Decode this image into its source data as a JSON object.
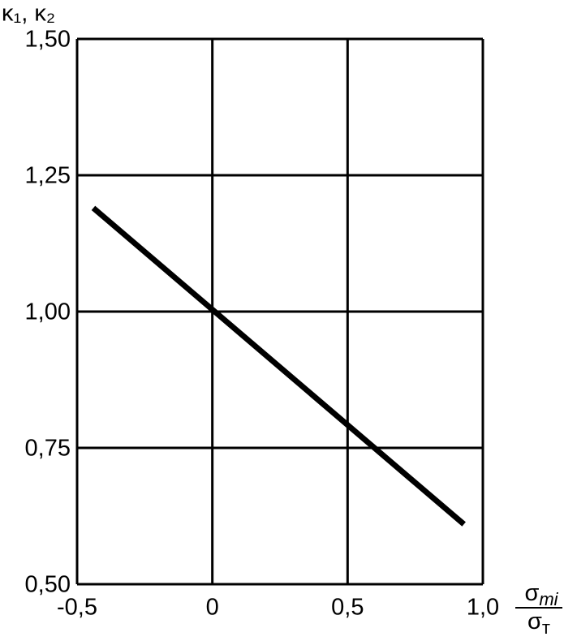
{
  "chart_data": {
    "type": "line",
    "y_label": "κ₁, κ₂",
    "x_label": {
      "numerator": [
        "σ",
        "mi"
      ],
      "denominator": [
        "σ",
        "т"
      ]
    },
    "series": [
      {
        "color": "#000000",
        "x": [
          -0.44,
          0.93
        ],
        "values": [
          1.19,
          0.61
        ]
      }
    ],
    "xlim": [
      -0.5,
      1.0
    ],
    "xticks": [
      {
        "value": -0.5,
        "label": "-0,5"
      },
      0,
      {
        "value": 0.5,
        "label": "0,5"
      },
      {
        "value": 1.0,
        "label": "1,0"
      }
    ],
    "ylim": [
      0.5,
      1.5
    ],
    "yticks": [
      {
        "value": 0.5,
        "label": "0,50"
      },
      {
        "value": 0.75,
        "label": "0,75"
      },
      {
        "value": 1.0,
        "label": "1,00"
      },
      {
        "value": 1.25,
        "label": "1,25"
      },
      {
        "value": 1.5,
        "label": "1,50"
      }
    ],
    "grid": true
  }
}
